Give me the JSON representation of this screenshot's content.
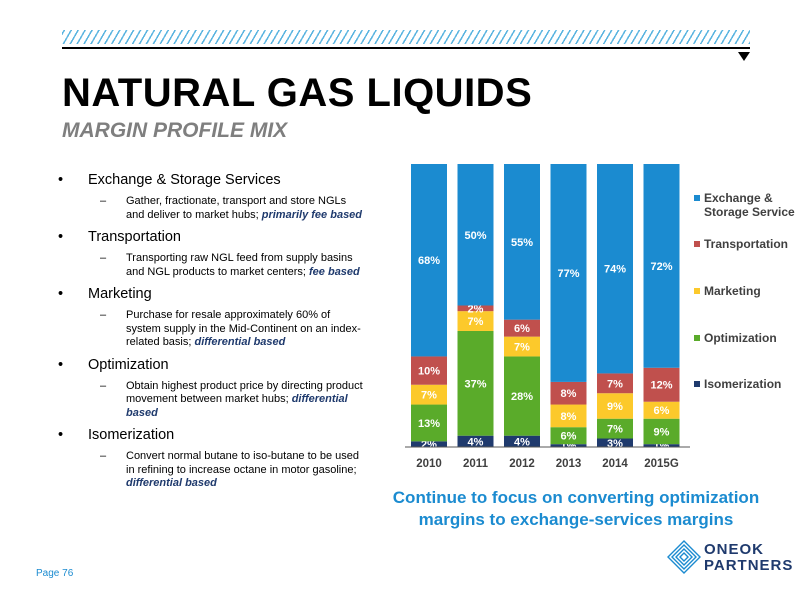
{
  "header": {
    "title": "NATURAL GAS LIQUIDS",
    "subtitle": "MARGIN PROFILE MIX"
  },
  "bullets": [
    {
      "label": "Exchange & Storage Services",
      "sub_lines": [
        "Gather, fractionate, transport and store NGLs",
        "and deliver to market hubs; "
      ],
      "emphasis_lines": [
        "primarily fee based"
      ]
    },
    {
      "label": "Transportation",
      "sub_lines": [
        "Transporting raw NGL feed from supply basins",
        "and NGL products to market centers; "
      ],
      "emphasis_lines": [
        "fee based"
      ]
    },
    {
      "label": "Marketing",
      "sub_lines": [
        "Purchase for resale approximately 60% of",
        "system supply in the Mid-Continent on an index-",
        "related basis; "
      ],
      "emphasis_lines": [
        "differential based"
      ]
    },
    {
      "label": "Optimization",
      "sub_lines": [
        "Obtain highest product price by directing product",
        "movement between market hubs; "
      ],
      "emphasis_lines": [
        "differential",
        "based"
      ]
    },
    {
      "label": "Isomerization",
      "sub_lines": [
        "Convert normal butane to iso-butane to be used",
        "in refining to increase octane in motor gasoline;"
      ],
      "emphasis_lines": [
        "differential based"
      ]
    }
  ],
  "chart_data": {
    "type": "bar",
    "stacked": true,
    "normalized": true,
    "categories": [
      "2010",
      "2011",
      "2012",
      "2013",
      "2014",
      "2015G"
    ],
    "series": [
      {
        "name": "Isomerization",
        "color": "#1f3a6d",
        "values": [
          2,
          4,
          4,
          1,
          3,
          1
        ],
        "labels": [
          "2%",
          "4%",
          "4%",
          "1%",
          "3%",
          "1%"
        ]
      },
      {
        "name": "Optimization",
        "color": "#5aab2a",
        "values": [
          13,
          37,
          28,
          6,
          7,
          9
        ],
        "labels": [
          "13%",
          "37%",
          "28%",
          "6%",
          "7%",
          "9%"
        ]
      },
      {
        "name": "Marketing",
        "color": "#fcc92b",
        "values": [
          7,
          7,
          7,
          8,
          9,
          6
        ],
        "labels": [
          "7%",
          "7%",
          "7%",
          "8%",
          "9%",
          "6%"
        ]
      },
      {
        "name": "Transportation",
        "color": "#c0504d",
        "values": [
          10,
          2,
          6,
          8,
          7,
          12
        ],
        "labels": [
          "10%",
          "2%",
          "6%",
          "8%",
          "7%",
          "12%"
        ]
      },
      {
        "name": "Exchange & Storage Services",
        "color": "#1b8bd0",
        "values": [
          68,
          50,
          55,
          77,
          74,
          72
        ],
        "labels": [
          "68%",
          "50%",
          "55%",
          "77%",
          "74%",
          "72%"
        ]
      }
    ],
    "legend_position": "right",
    "legend_order": [
      "Exchange & Storage Services",
      "Transportation",
      "Marketing",
      "Optimization",
      "Isomerization"
    ],
    "ylim": [
      0,
      100
    ],
    "grid": false
  },
  "caption": {
    "line1": "Continue to focus on converting optimization",
    "line2": "margins to exchange-services margins"
  },
  "footer": {
    "page": "Page 76"
  },
  "logo": {
    "line1": "ONEOK",
    "line2": "PARTNERS"
  }
}
